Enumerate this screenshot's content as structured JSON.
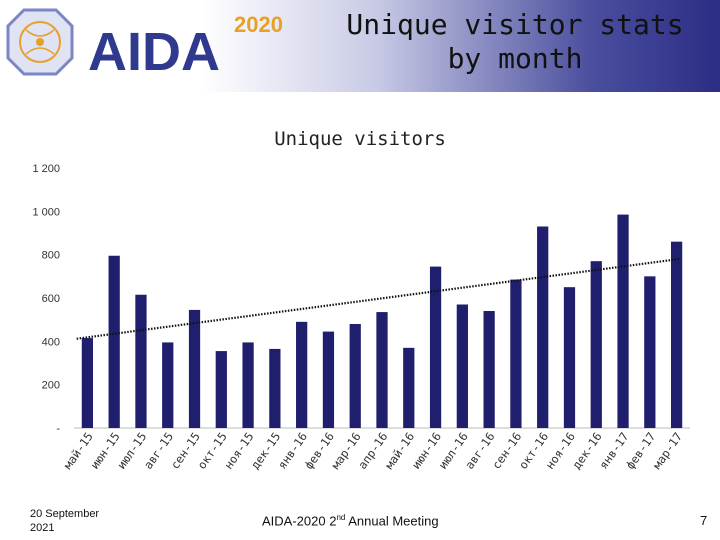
{
  "header": {
    "logo_text": "AIDA",
    "logo_year": "2020",
    "slide_title": "Unique visitor stats by month"
  },
  "colors": {
    "bar": "#1f1f6e",
    "trendline": "#111111",
    "logo_blue": "#2f3a8f",
    "logo_orange": "#e8a02a"
  },
  "chart_data": {
    "type": "bar",
    "title": "Unique visitors",
    "xlabel": "",
    "ylabel": "",
    "ylim": [
      0,
      1200
    ],
    "yticks": [
      "-",
      "200",
      "400",
      "600",
      "800",
      "1 000",
      "1 200"
    ],
    "ytick_values": [
      0,
      200,
      400,
      600,
      800,
      1000,
      1200
    ],
    "categories": [
      "май-15",
      "июн-15",
      "июл-15",
      "авг-15",
      "сен-15",
      "окт-15",
      "ноя-15",
      "дек-15",
      "янв-16",
      "фев-16",
      "мар-16",
      "апр-16",
      "май-16",
      "июн-16",
      "июл-16",
      "авг-16",
      "сен-16",
      "окт-16",
      "ноя-16",
      "дек-16",
      "янв-17",
      "фев-17",
      "мар-17"
    ],
    "values": [
      415,
      795,
      615,
      395,
      545,
      355,
      395,
      365,
      490,
      445,
      480,
      535,
      370,
      745,
      570,
      540,
      685,
      930,
      650,
      770,
      985,
      700,
      860
    ],
    "trendline": {
      "type": "linear",
      "style": "dotted",
      "start": 412,
      "end": 780
    },
    "grid": false,
    "legend": "none"
  },
  "footer": {
    "date": "20 September\n2021",
    "meeting_prefix": "AIDA-2020 2",
    "meeting_sup": "nd",
    "meeting_suffix": " Annual Meeting",
    "page": "7"
  }
}
